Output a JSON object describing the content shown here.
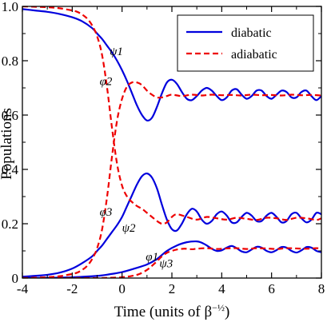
{
  "chart_data": {
    "type": "line",
    "xlabel": "Time (units of β^-1/2)",
    "ylabel": "Populations",
    "xlim": [
      -4,
      8
    ],
    "ylim": [
      0,
      1.0
    ],
    "xticks": [
      -4,
      -2,
      0,
      2,
      4,
      6,
      8
    ],
    "yticks": [
      0,
      0.2,
      0.4,
      0.6,
      0.8,
      1.0
    ],
    "xtick_labels": [
      "-4",
      "-2",
      "0",
      "2",
      "4",
      "6",
      "8"
    ],
    "ytick_labels": [
      "0",
      "0.2",
      "0.4",
      "0.6",
      "0.8",
      "1.0"
    ],
    "grid": false,
    "legend_position": "top-right",
    "legend": [
      {
        "label": "diabatic",
        "color": "#0000dd",
        "style": "solid"
      },
      {
        "label": "adiabatic",
        "color": "#ee0000",
        "style": "dashed"
      }
    ],
    "curve_labels": [
      {
        "text": "ψ1",
        "x": -0.5,
        "y": 0.82
      },
      {
        "text": "φ2",
        "x": -0.9,
        "y": 0.71
      },
      {
        "text": "φ3",
        "x": -0.9,
        "y": 0.23
      },
      {
        "text": "ψ2",
        "x": 0.0,
        "y": 0.17
      },
      {
        "text": "φ1",
        "x": 0.95,
        "y": 0.065
      },
      {
        "text": "ψ3",
        "x": 1.5,
        "y": 0.04
      }
    ],
    "series": [
      {
        "name": "ψ1",
        "kind": "diabatic",
        "color": "#0000dd",
        "style": "solid",
        "x": [
          -4,
          -3.5,
          -3,
          -2.5,
          -2,
          -1.6,
          -1.2,
          -1,
          -0.8,
          -0.6,
          -0.4,
          -0.2,
          0,
          0.2,
          0.4,
          0.6,
          0.8,
          1,
          1.2,
          1.4,
          1.6,
          1.8,
          2,
          2.2,
          2.4,
          2.6,
          2.8,
          3,
          3.2,
          3.4,
          3.6,
          3.8,
          4,
          4.2,
          4.4,
          4.6,
          4.8,
          5,
          5.2,
          5.4,
          5.6,
          5.8,
          6,
          6.2,
          6.4,
          6.6,
          6.8,
          7,
          7.2,
          7.4,
          7.6,
          7.8,
          8
        ],
        "y": [
          0.99,
          0.985,
          0.98,
          0.972,
          0.96,
          0.945,
          0.92,
          0.9,
          0.88,
          0.855,
          0.83,
          0.8,
          0.765,
          0.725,
          0.68,
          0.635,
          0.6,
          0.58,
          0.59,
          0.63,
          0.68,
          0.72,
          0.73,
          0.715,
          0.685,
          0.66,
          0.655,
          0.67,
          0.69,
          0.7,
          0.69,
          0.67,
          0.655,
          0.665,
          0.69,
          0.695,
          0.675,
          0.66,
          0.67,
          0.69,
          0.69,
          0.67,
          0.66,
          0.675,
          0.69,
          0.685,
          0.665,
          0.665,
          0.685,
          0.69,
          0.67,
          0.655,
          0.67
        ]
      },
      {
        "name": "ψ2",
        "kind": "diabatic",
        "color": "#0000dd",
        "style": "solid",
        "x": [
          -4,
          -3.5,
          -3,
          -2.5,
          -2,
          -1.6,
          -1.2,
          -1,
          -0.8,
          -0.6,
          -0.4,
          -0.2,
          0,
          0.2,
          0.4,
          0.6,
          0.8,
          1,
          1.2,
          1.4,
          1.6,
          1.8,
          2,
          2.2,
          2.4,
          2.6,
          2.8,
          3,
          3.2,
          3.4,
          3.6,
          3.8,
          4,
          4.2,
          4.4,
          4.6,
          4.8,
          5,
          5.2,
          5.4,
          5.6,
          5.8,
          6,
          6.2,
          6.4,
          6.6,
          6.8,
          7,
          7.2,
          7.4,
          7.6,
          7.8,
          8
        ],
        "y": [
          0.005,
          0.008,
          0.012,
          0.02,
          0.035,
          0.055,
          0.08,
          0.1,
          0.12,
          0.145,
          0.17,
          0.195,
          0.225,
          0.265,
          0.305,
          0.345,
          0.375,
          0.385,
          0.37,
          0.33,
          0.27,
          0.215,
          0.18,
          0.175,
          0.2,
          0.235,
          0.255,
          0.245,
          0.215,
          0.2,
          0.21,
          0.235,
          0.245,
          0.23,
          0.205,
          0.205,
          0.225,
          0.24,
          0.23,
          0.21,
          0.21,
          0.23,
          0.24,
          0.225,
          0.205,
          0.21,
          0.235,
          0.24,
          0.22,
          0.205,
          0.215,
          0.24,
          0.235
        ]
      },
      {
        "name": "ψ3",
        "kind": "diabatic",
        "color": "#0000dd",
        "style": "solid",
        "x": [
          -4,
          -3,
          -2,
          -1,
          -0.5,
          0,
          0.5,
          1,
          1.4,
          1.8,
          2.2,
          2.6,
          3,
          3.2,
          3.4,
          3.6,
          3.8,
          4,
          4.2,
          4.4,
          4.6,
          4.8,
          5,
          5.2,
          5.4,
          5.6,
          5.8,
          6,
          6.2,
          6.4,
          6.6,
          6.8,
          7,
          7.2,
          7.4,
          7.6,
          7.8,
          8
        ],
        "y": [
          0.0,
          0.001,
          0.003,
          0.008,
          0.014,
          0.022,
          0.035,
          0.05,
          0.07,
          0.1,
          0.12,
          0.132,
          0.135,
          0.13,
          0.12,
          0.108,
          0.1,
          0.102,
          0.112,
          0.118,
          0.11,
          0.098,
          0.095,
          0.105,
          0.115,
          0.112,
          0.1,
          0.095,
          0.103,
          0.114,
          0.112,
          0.1,
          0.094,
          0.102,
          0.114,
          0.112,
          0.1,
          0.095
        ]
      },
      {
        "name": "φ1",
        "kind": "adiabatic",
        "color": "#ee0000",
        "style": "dashed",
        "x": [
          -4,
          -3,
          -2,
          -1,
          -0.5,
          0,
          0.4,
          0.7,
          1,
          1.2,
          1.4,
          1.6,
          1.8,
          2,
          2.2,
          2.5,
          2.8,
          3,
          3.4,
          3.8,
          4.2,
          4.6,
          5,
          5.4,
          5.8,
          6.2,
          6.6,
          7,
          7.4,
          7.8,
          8
        ],
        "y": [
          0.0,
          0.0,
          0.0,
          0.0,
          0.001,
          0.003,
          0.008,
          0.015,
          0.03,
          0.045,
          0.062,
          0.08,
          0.093,
          0.1,
          0.105,
          0.108,
          0.106,
          0.108,
          0.11,
          0.107,
          0.109,
          0.11,
          0.107,
          0.11,
          0.109,
          0.107,
          0.11,
          0.109,
          0.108,
          0.11,
          0.108
        ]
      },
      {
        "name": "φ2",
        "kind": "adiabatic",
        "color": "#ee0000",
        "style": "dashed",
        "x": [
          -4,
          -3,
          -2.5,
          -2,
          -1.8,
          -1.6,
          -1.4,
          -1.2,
          -1,
          -0.8,
          -0.6,
          -0.4,
          -0.2,
          0,
          0.2,
          0.4,
          0.6,
          0.8,
          1,
          1.2,
          1.4,
          1.6,
          1.8,
          2,
          2.4,
          2.8,
          3.2,
          3.6,
          4,
          4.4,
          4.8,
          5.2,
          5.6,
          6,
          6.4,
          6.8,
          7.2,
          7.6,
          8
        ],
        "y": [
          0.0,
          0.003,
          0.007,
          0.015,
          0.02,
          0.03,
          0.045,
          0.07,
          0.11,
          0.18,
          0.3,
          0.45,
          0.58,
          0.66,
          0.705,
          0.72,
          0.72,
          0.71,
          0.69,
          0.675,
          0.665,
          0.665,
          0.67,
          0.675,
          0.67,
          0.675,
          0.672,
          0.675,
          0.673,
          0.674,
          0.672,
          0.675,
          0.673,
          0.674,
          0.672,
          0.675,
          0.673,
          0.674,
          0.672
        ]
      },
      {
        "name": "φ3",
        "kind": "adiabatic",
        "color": "#ee0000",
        "style": "dashed",
        "x": [
          -4,
          -3,
          -2.5,
          -2,
          -1.8,
          -1.6,
          -1.4,
          -1.2,
          -1,
          -0.8,
          -0.6,
          -0.4,
          -0.2,
          0,
          0.2,
          0.4,
          0.6,
          0.8,
          1,
          1.2,
          1.4,
          1.6,
          1.8,
          2,
          2.2,
          2.6,
          3,
          3.4,
          3.8,
          4.2,
          4.6,
          5,
          5.4,
          5.8,
          6.2,
          6.6,
          7,
          7.4,
          7.8,
          8
        ],
        "y": [
          1.0,
          0.997,
          0.993,
          0.985,
          0.98,
          0.97,
          0.955,
          0.93,
          0.89,
          0.82,
          0.7,
          0.55,
          0.42,
          0.34,
          0.3,
          0.28,
          0.265,
          0.255,
          0.24,
          0.225,
          0.21,
          0.2,
          0.205,
          0.225,
          0.235,
          0.225,
          0.215,
          0.225,
          0.22,
          0.215,
          0.222,
          0.218,
          0.214,
          0.222,
          0.22,
          0.214,
          0.222,
          0.22,
          0.214,
          0.22
        ]
      }
    ]
  }
}
